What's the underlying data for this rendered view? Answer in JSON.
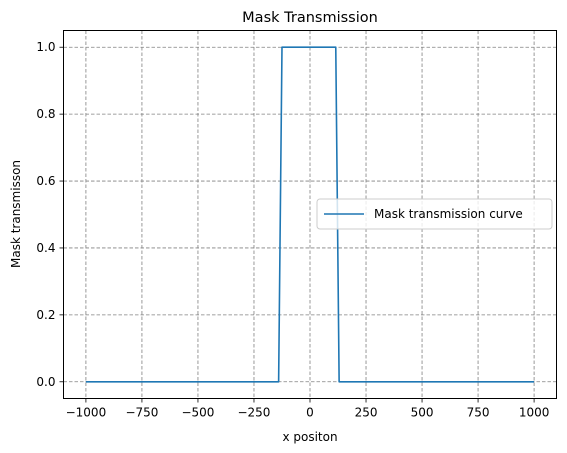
{
  "chart_data": {
    "type": "line",
    "title": "Mask Transmission",
    "xlabel": "x positon",
    "ylabel": "Mask transmisson",
    "xlim": [
      -1100,
      1100
    ],
    "ylim": [
      -0.05,
      1.05
    ],
    "xticks": [
      -1000,
      -750,
      -500,
      -250,
      0,
      250,
      500,
      750,
      1000
    ],
    "xtick_labels": [
      "−1000",
      "−750",
      "−500",
      "−250",
      "0",
      "250",
      "500",
      "750",
      "1000"
    ],
    "yticks": [
      0.0,
      0.2,
      0.4,
      0.6,
      0.8,
      1.0
    ],
    "ytick_labels": [
      "0.0",
      "0.2",
      "0.4",
      "0.6",
      "0.8",
      "1.0"
    ],
    "grid": true,
    "legend_position": "center-right",
    "series": [
      {
        "name": "Mask transmission curve",
        "color": "#1f77b4",
        "x": [
          -1000,
          -140,
          -125,
          115,
          130,
          1000
        ],
        "y": [
          0,
          0,
          1,
          1,
          0,
          0
        ]
      }
    ]
  }
}
